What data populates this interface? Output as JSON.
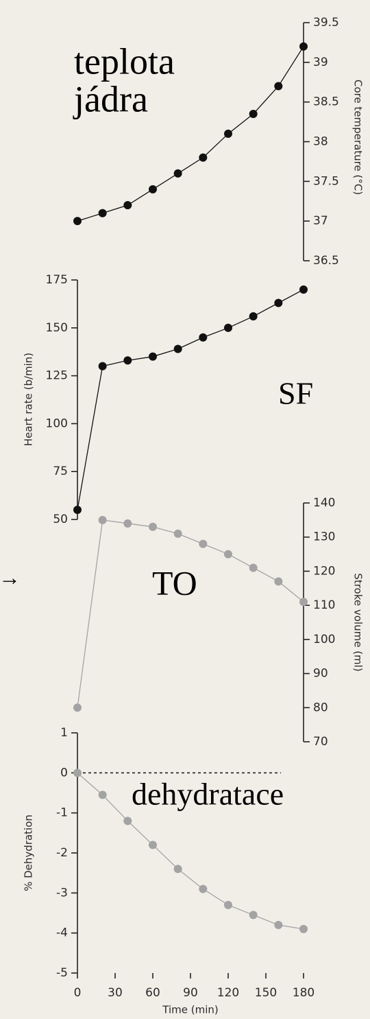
{
  "chart_data": [
    {
      "type": "line",
      "ylabel": "Core temperature (°C)",
      "yaxis_side": "right",
      "x": [
        0,
        20,
        40,
        60,
        80,
        100,
        120,
        140,
        160,
        180
      ],
      "xlim": [
        0,
        180
      ],
      "ylim": [
        36.5,
        39.5
      ],
      "yticks": [
        36.5,
        37,
        37.5,
        38,
        38.5,
        39,
        39.5
      ],
      "series": [
        {
          "name": "Core temperature",
          "color": "#111111",
          "values": [
            37.0,
            37.1,
            37.2,
            37.4,
            37.6,
            37.8,
            38.1,
            38.35,
            38.7,
            39.2
          ]
        }
      ],
      "annotations": [
        "teplota",
        "jádra"
      ]
    },
    {
      "type": "line",
      "ylabel": "Heart rate (b/min)",
      "yaxis_side": "left",
      "x": [
        0,
        20,
        40,
        60,
        80,
        100,
        120,
        140,
        160,
        180
      ],
      "xlim": [
        0,
        180
      ],
      "ylim": [
        50,
        175
      ],
      "yticks": [
        50,
        75,
        100,
        125,
        150,
        175
      ],
      "series": [
        {
          "name": "Heart rate",
          "color": "#111111",
          "values": [
            55,
            130,
            133,
            135,
            139,
            145,
            150,
            156,
            163,
            170
          ]
        }
      ],
      "annotations": [
        "SF"
      ]
    },
    {
      "type": "line",
      "ylabel": "Stroke volume (ml)",
      "yaxis_side": "right",
      "x": [
        0,
        20,
        40,
        60,
        80,
        100,
        120,
        140,
        160,
        180
      ],
      "xlim": [
        0,
        180
      ],
      "ylim": [
        70,
        140
      ],
      "yticks": [
        70,
        80,
        90,
        100,
        110,
        120,
        130,
        140
      ],
      "series": [
        {
          "name": "Stroke volume",
          "color": "#a3a3a3",
          "values": [
            80,
            135,
            134,
            133,
            131,
            128,
            125,
            121,
            117,
            111
          ]
        }
      ],
      "annotations": [
        "TO",
        "→"
      ]
    },
    {
      "type": "line",
      "ylabel": "% Dehydration",
      "yaxis_side": "left",
      "xlabel": "Time (min)",
      "x": [
        0,
        20,
        40,
        60,
        80,
        100,
        120,
        140,
        160,
        180
      ],
      "xlim": [
        0,
        180
      ],
      "xticks": [
        0,
        30,
        60,
        90,
        120,
        150,
        180
      ],
      "ylim": [
        -5,
        1
      ],
      "yticks": [
        -5,
        -4,
        -3,
        -2,
        -1,
        0,
        1
      ],
      "reference_line": 0,
      "series": [
        {
          "name": "Dehydration",
          "color": "#a3a3a3",
          "values": [
            0,
            -0.55,
            -1.2,
            -1.8,
            -2.4,
            -2.9,
            -3.3,
            -3.55,
            -3.8,
            -3.9
          ]
        }
      ],
      "annotations": [
        "dehydratace"
      ]
    }
  ]
}
